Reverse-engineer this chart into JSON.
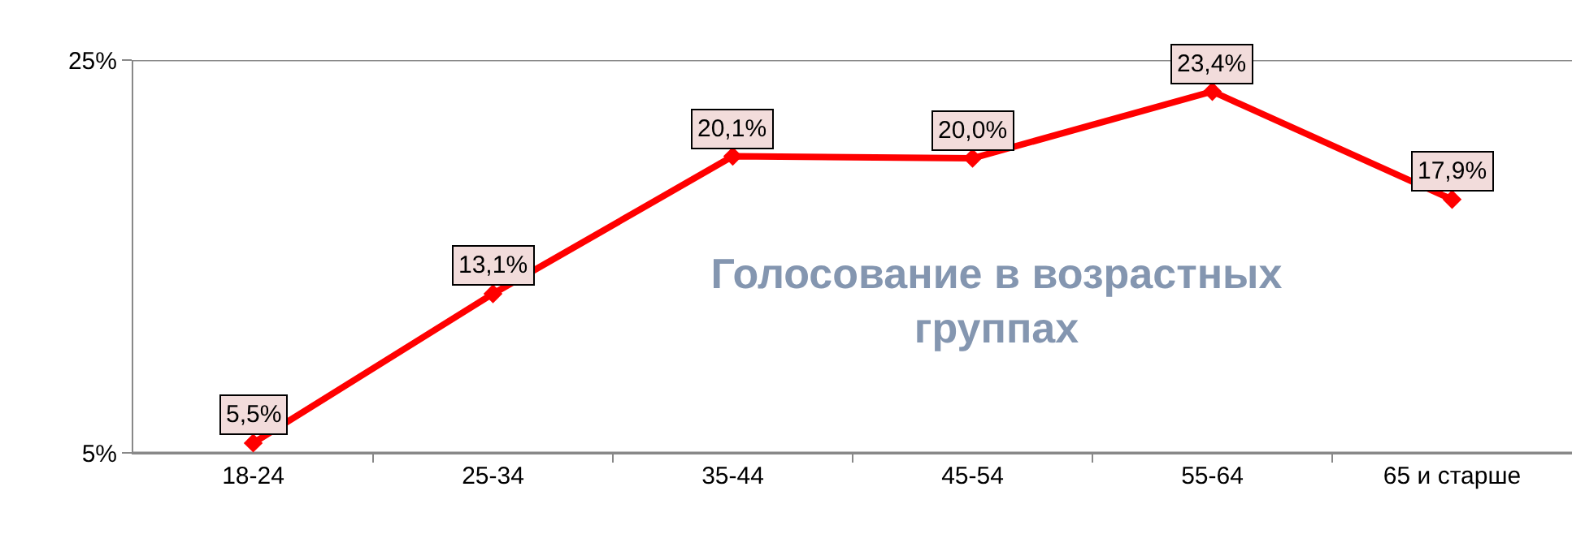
{
  "chart_data": {
    "type": "line",
    "title": "Голосование в возрастных группах",
    "categories": [
      "18-24",
      "25-34",
      "35-44",
      "45-54",
      "55-64",
      "65 и старше"
    ],
    "series": [
      {
        "color": "#ff0000",
        "values": [
          5.5,
          13.1,
          20.1,
          20.0,
          23.4,
          17.9
        ],
        "value_labels": [
          "5,5%",
          "13,1%",
          "20,1%",
          "20,0%",
          "23,4%",
          "17,9%"
        ]
      }
    ],
    "ylim": [
      5,
      25
    ],
    "yticks": [
      {
        "value": 5,
        "label": "5%"
      },
      {
        "value": 25,
        "label": "25%"
      }
    ],
    "grid": "y",
    "marker": "diamond",
    "line_style": "solid"
  }
}
